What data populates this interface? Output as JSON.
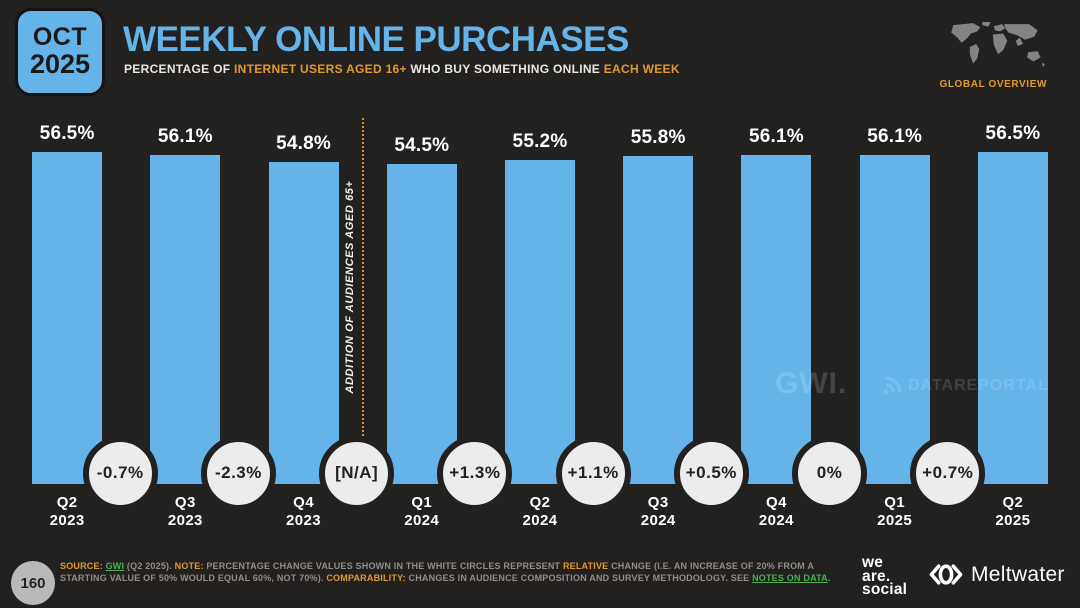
{
  "colors": {
    "bg": "#232020",
    "accent_blue": "#64b4ea",
    "accent_orange": "#e1992e",
    "link_green": "#4caf50",
    "circle_fill": "#ececec",
    "text_gray": "#908d8a"
  },
  "header": {
    "badge": {
      "month": "OCT",
      "year": "2025"
    },
    "title": "WEEKLY ONLINE PURCHASES",
    "subtitle_segments": [
      {
        "text": "PERCENTAGE OF ",
        "style": "white"
      },
      {
        "text": "INTERNET USERS AGED 16+",
        "style": "orange"
      },
      {
        "text": " WHO BUY SOMETHING ONLINE ",
        "style": "white"
      },
      {
        "text": "EACH WEEK",
        "style": "orange"
      }
    ],
    "global_overview_label": "GLOBAL OVERVIEW"
  },
  "chart_data": {
    "type": "bar",
    "title": "WEEKLY ONLINE PURCHASES",
    "subtitle": "PERCENTAGE OF INTERNET USERS AGED 16+ WHO BUY SOMETHING ONLINE EACH WEEK",
    "categories": [
      "Q2 2023",
      "Q3 2023",
      "Q4 2023",
      "Q1 2024",
      "Q2 2024",
      "Q3 2024",
      "Q4 2024",
      "Q1 2025",
      "Q2 2025"
    ],
    "values": [
      56.5,
      56.1,
      54.8,
      54.5,
      55.2,
      55.8,
      56.1,
      56.1,
      56.5
    ],
    "value_labels": [
      "56.5%",
      "56.1%",
      "54.8%",
      "54.5%",
      "55.2%",
      "55.8%",
      "56.1%",
      "56.1%",
      "56.5%"
    ],
    "change_labels": [
      "-0.7%",
      "-2.3%",
      "[N/A]",
      "+1.3%",
      "+1.1%",
      "+0.5%",
      "0%",
      "+0.7%"
    ],
    "annotation": "ADDITION OF AUDIENCES AGED 65+",
    "annotation_after_index": 2,
    "bar_color": "#64b4ea",
    "xlabel": "",
    "ylabel": ""
  },
  "watermarks": {
    "gwi": "GWI.",
    "datareportal": "DATAREPORTAL"
  },
  "footer": {
    "page_number": "160",
    "note_segments": [
      {
        "text": "SOURCE: ",
        "style": "orange-bold"
      },
      {
        "text": "GWI",
        "style": "green",
        "link": true,
        "name": "source-link"
      },
      {
        "text": " (Q2 2025). ",
        "style": "plain"
      },
      {
        "text": "NOTE: ",
        "style": "orange-bold"
      },
      {
        "text": "PERCENTAGE CHANGE VALUES SHOWN IN THE WHITE CIRCLES REPRESENT ",
        "style": "plain"
      },
      {
        "text": "RELATIVE",
        "style": "orange-bold"
      },
      {
        "text": " CHANGE (I.E. AN INCREASE OF 20% FROM A STARTING VALUE OF 50% WOULD EQUAL 60%, NOT 70%). ",
        "style": "plain"
      },
      {
        "text": "COMPARABILITY: ",
        "style": "orange-bold"
      },
      {
        "text": "CHANGES IN AUDIENCE COMPOSITION AND SURVEY METHODOLOGY. SEE ",
        "style": "plain"
      },
      {
        "text": "NOTES ON DATA",
        "style": "green",
        "link": true,
        "name": "notes-on-data-link"
      },
      {
        "text": ".",
        "style": "plain"
      }
    ],
    "logos": {
      "we_are_social_lines": [
        "we",
        "are.",
        "social"
      ],
      "meltwater": "Meltwater"
    }
  }
}
